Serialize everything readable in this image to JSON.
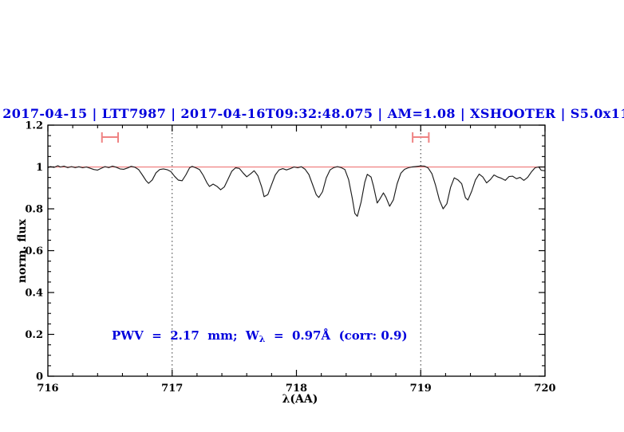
{
  "figure": {
    "annotation": {
      "prefix": "PWV  =  2.17  mm;  W",
      "subscript": "λ",
      "suffix": "  =  0.97Å  (corr: 0.9)"
    }
  },
  "chart_data": {
    "type": "line",
    "title": "2017-04-15 | LTT7987 | 2017-04-16T09:32:48.075 | AM=1.08 | XSHOOTER | S5.0x11",
    "title_color": "#0000dd",
    "xlabel": "λ(AA)",
    "ylabel": "norm. flux",
    "xlim": [
      716,
      720
    ],
    "ylim": [
      0,
      1.2
    ],
    "xticks": {
      "major": [
        716,
        717,
        718,
        719,
        720
      ],
      "labels": [
        "716",
        "717",
        "718",
        "719",
        "720"
      ],
      "minor_step": 0.2
    },
    "yticks": {
      "major": [
        0,
        0.2,
        0.4,
        0.6,
        0.8,
        1,
        1.2
      ],
      "labels": [
        "0",
        "0.2",
        "0.4",
        "0.6",
        "0.8",
        "1",
        "1.2"
      ],
      "minor_step": 0.05
    },
    "grid": false,
    "legend": null,
    "reference_line": {
      "y": 1.0,
      "color": "#f08080"
    },
    "dotted_vlines": {
      "x": [
        717,
        719
      ],
      "color": "#333333"
    },
    "interval_markers": {
      "color": "#ef8383",
      "y": 1.143,
      "items": [
        {
          "x_center": 716.5,
          "half_width": 0.065
        },
        {
          "x_center": 719.0,
          "half_width": 0.065
        }
      ]
    },
    "series": [
      {
        "name": "normalized-telluric-spectrum",
        "color": "#1c1c1c",
        "points": [
          [
            716.0,
            0.997
          ],
          [
            716.02,
            1.002
          ],
          [
            716.05,
            0.998
          ],
          [
            716.08,
            1.006
          ],
          [
            716.1,
            1.0
          ],
          [
            716.13,
            1.004
          ],
          [
            716.16,
            0.997
          ],
          [
            716.19,
            1.002
          ],
          [
            716.22,
            0.997
          ],
          [
            716.25,
            1.001
          ],
          [
            716.28,
            0.996
          ],
          [
            716.31,
            1.0
          ],
          [
            716.34,
            0.994
          ],
          [
            716.37,
            0.988
          ],
          [
            716.4,
            0.985
          ],
          [
            716.43,
            0.994
          ],
          [
            716.46,
            1.002
          ],
          [
            716.49,
            0.997
          ],
          [
            716.52,
            1.004
          ],
          [
            716.55,
            0.999
          ],
          [
            716.58,
            0.991
          ],
          [
            716.61,
            0.989
          ],
          [
            716.64,
            0.995
          ],
          [
            716.67,
            1.003
          ],
          [
            716.7,
            0.999
          ],
          [
            716.73,
            0.988
          ],
          [
            716.76,
            0.962
          ],
          [
            716.79,
            0.935
          ],
          [
            716.81,
            0.922
          ],
          [
            716.84,
            0.938
          ],
          [
            716.87,
            0.972
          ],
          [
            716.9,
            0.988
          ],
          [
            716.93,
            0.991
          ],
          [
            716.96,
            0.987
          ],
          [
            716.99,
            0.978
          ],
          [
            717.02,
            0.955
          ],
          [
            717.05,
            0.937
          ],
          [
            717.08,
            0.934
          ],
          [
            717.11,
            0.962
          ],
          [
            717.14,
            0.996
          ],
          [
            717.16,
            1.003
          ],
          [
            717.19,
            0.996
          ],
          [
            717.22,
            0.988
          ],
          [
            717.25,
            0.96
          ],
          [
            717.28,
            0.924
          ],
          [
            717.3,
            0.907
          ],
          [
            717.33,
            0.918
          ],
          [
            717.36,
            0.908
          ],
          [
            717.39,
            0.891
          ],
          [
            717.42,
            0.905
          ],
          [
            717.45,
            0.942
          ],
          [
            717.48,
            0.98
          ],
          [
            717.51,
            0.996
          ],
          [
            717.54,
            0.993
          ],
          [
            717.57,
            0.972
          ],
          [
            717.6,
            0.953
          ],
          [
            717.63,
            0.967
          ],
          [
            717.66,
            0.982
          ],
          [
            717.69,
            0.958
          ],
          [
            717.72,
            0.905
          ],
          [
            717.74,
            0.858
          ],
          [
            717.77,
            0.868
          ],
          [
            717.8,
            0.915
          ],
          [
            717.83,
            0.962
          ],
          [
            717.86,
            0.986
          ],
          [
            717.89,
            0.992
          ],
          [
            717.92,
            0.986
          ],
          [
            717.95,
            0.992
          ],
          [
            717.98,
            1.0
          ],
          [
            718.01,
            0.996
          ],
          [
            718.04,
            1.001
          ],
          [
            718.07,
            0.989
          ],
          [
            718.1,
            0.964
          ],
          [
            718.13,
            0.916
          ],
          [
            718.16,
            0.867
          ],
          [
            718.18,
            0.854
          ],
          [
            718.21,
            0.882
          ],
          [
            718.24,
            0.948
          ],
          [
            718.27,
            0.986
          ],
          [
            718.3,
            0.997
          ],
          [
            718.33,
            1.002
          ],
          [
            718.36,
            0.997
          ],
          [
            718.39,
            0.988
          ],
          [
            718.42,
            0.94
          ],
          [
            718.45,
            0.848
          ],
          [
            718.47,
            0.778
          ],
          [
            718.49,
            0.764
          ],
          [
            718.52,
            0.832
          ],
          [
            718.55,
            0.928
          ],
          [
            718.57,
            0.965
          ],
          [
            718.6,
            0.952
          ],
          [
            718.62,
            0.908
          ],
          [
            718.65,
            0.828
          ],
          [
            718.67,
            0.846
          ],
          [
            718.7,
            0.876
          ],
          [
            718.72,
            0.856
          ],
          [
            718.75,
            0.812
          ],
          [
            718.78,
            0.843
          ],
          [
            718.81,
            0.92
          ],
          [
            718.84,
            0.97
          ],
          [
            718.87,
            0.989
          ],
          [
            718.9,
            0.996
          ],
          [
            718.93,
            1.0
          ],
          [
            718.96,
            1.002
          ],
          [
            719.0,
            1.005
          ],
          [
            719.03,
            1.004
          ],
          [
            719.06,
            0.995
          ],
          [
            719.09,
            0.968
          ],
          [
            719.12,
            0.912
          ],
          [
            719.15,
            0.843
          ],
          [
            719.18,
            0.8
          ],
          [
            719.21,
            0.824
          ],
          [
            719.24,
            0.902
          ],
          [
            719.27,
            0.948
          ],
          [
            719.3,
            0.938
          ],
          [
            719.33,
            0.92
          ],
          [
            719.36,
            0.853
          ],
          [
            719.38,
            0.842
          ],
          [
            719.41,
            0.884
          ],
          [
            719.44,
            0.938
          ],
          [
            719.47,
            0.966
          ],
          [
            719.5,
            0.952
          ],
          [
            719.53,
            0.924
          ],
          [
            719.56,
            0.94
          ],
          [
            719.59,
            0.962
          ],
          [
            719.62,
            0.952
          ],
          [
            719.65,
            0.946
          ],
          [
            719.68,
            0.936
          ],
          [
            719.71,
            0.954
          ],
          [
            719.74,
            0.956
          ],
          [
            719.77,
            0.944
          ],
          [
            719.8,
            0.95
          ],
          [
            719.83,
            0.936
          ],
          [
            719.86,
            0.95
          ],
          [
            719.89,
            0.976
          ],
          [
            719.92,
            0.996
          ],
          [
            719.95,
            1.0
          ],
          [
            719.97,
            0.984
          ],
          [
            720.0,
            0.982
          ]
        ]
      }
    ]
  }
}
